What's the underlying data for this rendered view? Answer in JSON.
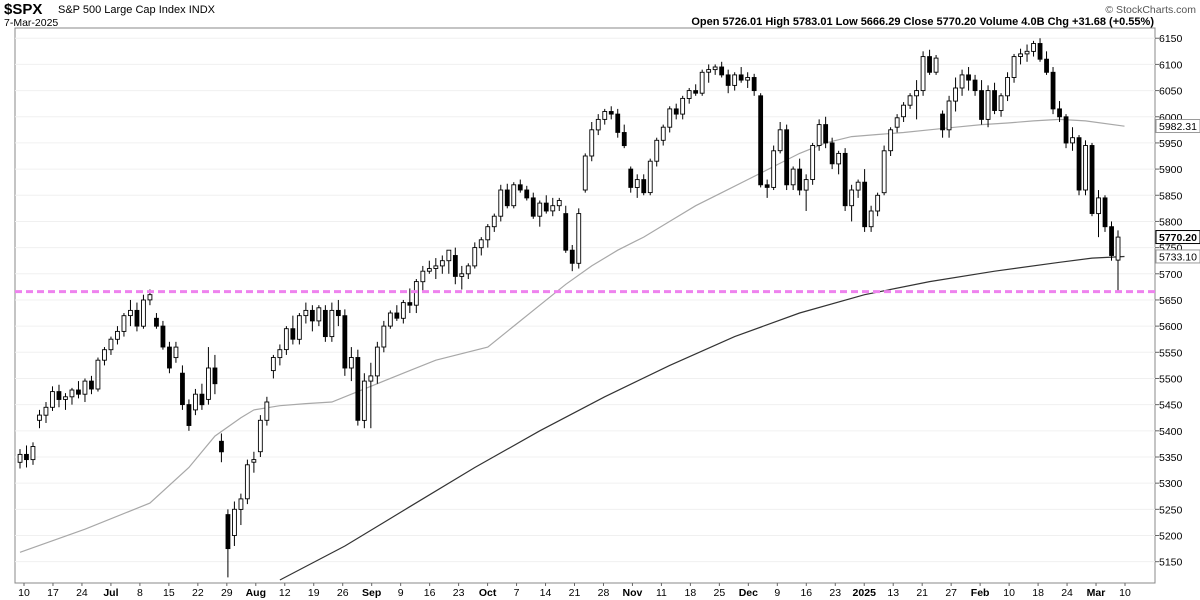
{
  "header": {
    "symbol": "$SPX",
    "name": "S&P 500 Large Cap Index",
    "exchange": "INDX",
    "date": "7-Mar-2025",
    "brand": "© StockCharts.com",
    "stats": "Open 5726.01  High 5783.01  Low 5666.29  Close 5770.20  Volume 4.0B  Chg +31.68 (+0.55%)"
  },
  "chart_data": {
    "type": "candlestick",
    "title": "$SPX S&P 500 Large Cap Index INDX",
    "ylim": [
      5115,
      6160
    ],
    "y_ticks": [
      5150,
      5200,
      5250,
      5300,
      5350,
      5400,
      5450,
      5500,
      5550,
      5600,
      5650,
      5700,
      5750,
      5800,
      5850,
      5900,
      5950,
      6000,
      6050,
      6100,
      6150
    ],
    "x_ticks": [
      {
        "label": "10",
        "bold": false
      },
      {
        "label": "17",
        "bold": false
      },
      {
        "label": "24",
        "bold": false
      },
      {
        "label": "Jul",
        "bold": true
      },
      {
        "label": "8",
        "bold": false
      },
      {
        "label": "15",
        "bold": false
      },
      {
        "label": "22",
        "bold": false
      },
      {
        "label": "29",
        "bold": false
      },
      {
        "label": "Aug",
        "bold": true
      },
      {
        "label": "12",
        "bold": false
      },
      {
        "label": "19",
        "bold": false
      },
      {
        "label": "26",
        "bold": false
      },
      {
        "label": "Sep",
        "bold": true
      },
      {
        "label": "9",
        "bold": false
      },
      {
        "label": "16",
        "bold": false
      },
      {
        "label": "23",
        "bold": false
      },
      {
        "label": "Oct",
        "bold": true
      },
      {
        "label": "7",
        "bold": false
      },
      {
        "label": "14",
        "bold": false
      },
      {
        "label": "21",
        "bold": false
      },
      {
        "label": "28",
        "bold": false
      },
      {
        "label": "Nov",
        "bold": true
      },
      {
        "label": "11",
        "bold": false
      },
      {
        "label": "18",
        "bold": false
      },
      {
        "label": "25",
        "bold": false
      },
      {
        "label": "Dec",
        "bold": true
      },
      {
        "label": "9",
        "bold": false
      },
      {
        "label": "16",
        "bold": false
      },
      {
        "label": "23",
        "bold": false
      },
      {
        "label": "2025",
        "bold": true
      },
      {
        "label": "13",
        "bold": false
      },
      {
        "label": "21",
        "bold": false
      },
      {
        "label": "27",
        "bold": false
      },
      {
        "label": "Feb",
        "bold": true
      },
      {
        "label": "10",
        "bold": false
      },
      {
        "label": "18",
        "bold": false
      },
      {
        "label": "24",
        "bold": false
      },
      {
        "label": "Mar",
        "bold": true
      },
      {
        "label": "10",
        "bold": false
      }
    ],
    "price_tags": [
      {
        "value": 5982.31,
        "label": "5982.31",
        "style": "ma"
      },
      {
        "value": 5770.2,
        "label": "5770.20",
        "style": "close"
      },
      {
        "value": 5733.1,
        "label": "5733.10",
        "style": "ma"
      }
    ],
    "support_line": {
      "value": 5666,
      "color": "#ee82ee",
      "dashed": true
    },
    "candles": [
      [
        5340,
        5365,
        5328,
        5355
      ],
      [
        5355,
        5372,
        5330,
        5345
      ],
      [
        5345,
        5378,
        5335,
        5370
      ],
      [
        5420,
        5440,
        5405,
        5430
      ],
      [
        5430,
        5455,
        5415,
        5445
      ],
      [
        5445,
        5485,
        5438,
        5475
      ],
      [
        5475,
        5488,
        5445,
        5460
      ],
      [
        5460,
        5472,
        5440,
        5465
      ],
      [
        5465,
        5482,
        5450,
        5478
      ],
      [
        5478,
        5495,
        5462,
        5470
      ],
      [
        5470,
        5500,
        5455,
        5495
      ],
      [
        5495,
        5505,
        5470,
        5480
      ],
      [
        5480,
        5540,
        5475,
        5535
      ],
      [
        5535,
        5560,
        5525,
        5555
      ],
      [
        5555,
        5580,
        5545,
        5575
      ],
      [
        5575,
        5600,
        5565,
        5590
      ],
      [
        5590,
        5625,
        5580,
        5620
      ],
      [
        5620,
        5650,
        5600,
        5630
      ],
      [
        5630,
        5645,
        5590,
        5600
      ],
      [
        5600,
        5660,
        5595,
        5650
      ],
      [
        5650,
        5670,
        5640,
        5660
      ],
      [
        5615,
        5625,
        5595,
        5600
      ],
      [
        5600,
        5610,
        5555,
        5560
      ],
      [
        5560,
        5570,
        5510,
        5520
      ],
      [
        5540,
        5570,
        5530,
        5560
      ],
      [
        5510,
        5525,
        5440,
        5450
      ],
      [
        5450,
        5460,
        5400,
        5410
      ],
      [
        5440,
        5480,
        5430,
        5470
      ],
      [
        5470,
        5490,
        5440,
        5450
      ],
      [
        5460,
        5560,
        5450,
        5520
      ],
      [
        5520,
        5545,
        5470,
        5490
      ],
      [
        5380,
        5395,
        5340,
        5360
      ],
      [
        5240,
        5250,
        5120,
        5175
      ],
      [
        5200,
        5265,
        5180,
        5250
      ],
      [
        5250,
        5280,
        5220,
        5270
      ],
      [
        5270,
        5345,
        5260,
        5335
      ],
      [
        5340,
        5360,
        5320,
        5345
      ],
      [
        5360,
        5430,
        5350,
        5420
      ],
      [
        5420,
        5465,
        5410,
        5455
      ],
      [
        5515,
        5545,
        5500,
        5540
      ],
      [
        5540,
        5565,
        5525,
        5555
      ],
      [
        5555,
        5600,
        5545,
        5595
      ],
      [
        5595,
        5620,
        5565,
        5575
      ],
      [
        5575,
        5625,
        5565,
        5620
      ],
      [
        5620,
        5645,
        5605,
        5630
      ],
      [
        5630,
        5640,
        5590,
        5610
      ],
      [
        5610,
        5640,
        5600,
        5635
      ],
      [
        5630,
        5640,
        5570,
        5580
      ],
      [
        5580,
        5645,
        5570,
        5630
      ],
      [
        5630,
        5650,
        5600,
        5620
      ],
      [
        5620,
        5632,
        5505,
        5520
      ],
      [
        5520,
        5560,
        5495,
        5540
      ],
      [
        5540,
        5555,
        5410,
        5420
      ],
      [
        5420,
        5510,
        5405,
        5495
      ],
      [
        5495,
        5530,
        5405,
        5505
      ],
      [
        5505,
        5570,
        5490,
        5560
      ],
      [
        5560,
        5610,
        5550,
        5600
      ],
      [
        5600,
        5630,
        5595,
        5625
      ],
      [
        5625,
        5640,
        5610,
        5615
      ],
      [
        5615,
        5650,
        5605,
        5645
      ],
      [
        5645,
        5672,
        5625,
        5640
      ],
      [
        5640,
        5690,
        5625,
        5685
      ],
      [
        5685,
        5715,
        5665,
        5705
      ],
      [
        5705,
        5725,
        5700,
        5710
      ],
      [
        5710,
        5730,
        5690,
        5715
      ],
      [
        5715,
        5735,
        5700,
        5725
      ],
      [
        5725,
        5745,
        5700,
        5745
      ],
      [
        5735,
        5750,
        5680,
        5695
      ],
      [
        5695,
        5715,
        5670,
        5700
      ],
      [
        5700,
        5720,
        5690,
        5715
      ],
      [
        5715,
        5760,
        5710,
        5750
      ],
      [
        5750,
        5770,
        5735,
        5765
      ],
      [
        5765,
        5795,
        5750,
        5790
      ],
      [
        5790,
        5815,
        5780,
        5810
      ],
      [
        5810,
        5870,
        5800,
        5860
      ],
      [
        5860,
        5872,
        5825,
        5830
      ],
      [
        5830,
        5875,
        5825,
        5870
      ],
      [
        5870,
        5880,
        5855,
        5860
      ],
      [
        5860,
        5868,
        5840,
        5845
      ],
      [
        5845,
        5855,
        5805,
        5810
      ],
      [
        5810,
        5840,
        5790,
        5835
      ],
      [
        5835,
        5850,
        5815,
        5820
      ],
      [
        5820,
        5845,
        5810,
        5830
      ],
      [
        5830,
        5845,
        5820,
        5840
      ],
      [
        5815,
        5830,
        5740,
        5745
      ],
      [
        5745,
        5755,
        5705,
        5720
      ],
      [
        5720,
        5825,
        5710,
        5815
      ],
      [
        5860,
        5930,
        5855,
        5925
      ],
      [
        5925,
        5990,
        5915,
        5975
      ],
      [
        5975,
        6005,
        5965,
        5995
      ],
      [
        5995,
        6015,
        5985,
        6010
      ],
      [
        6010,
        6020,
        5995,
        6005
      ],
      [
        6005,
        6015,
        5960,
        5970
      ],
      [
        5970,
        5985,
        5940,
        5945
      ],
      [
        5900,
        5905,
        5855,
        5865
      ],
      [
        5865,
        5890,
        5845,
        5880
      ],
      [
        5880,
        5890,
        5850,
        5855
      ],
      [
        5855,
        5920,
        5850,
        5915
      ],
      [
        5915,
        5960,
        5905,
        5955
      ],
      [
        5955,
        5985,
        5945,
        5980
      ],
      [
        5980,
        6020,
        5970,
        6015
      ],
      [
        6015,
        6025,
        5995,
        6005
      ],
      [
        6005,
        6040,
        5995,
        6035
      ],
      [
        6035,
        6055,
        6025,
        6050
      ],
      [
        6050,
        6062,
        6040,
        6045
      ],
      [
        6045,
        6090,
        6040,
        6085
      ],
      [
        6085,
        6100,
        6065,
        6090
      ],
      [
        6090,
        6100,
        6080,
        6095
      ],
      [
        6095,
        6105,
        6075,
        6080
      ],
      [
        6080,
        6090,
        6045,
        6060
      ],
      [
        6060,
        6085,
        6050,
        6080
      ],
      [
        6080,
        6095,
        6065,
        6070
      ],
      [
        6070,
        6085,
        6055,
        6075
      ],
      [
        6075,
        6082,
        6040,
        6050
      ],
      [
        6040,
        6045,
        5865,
        5870
      ],
      [
        5870,
        5880,
        5845,
        5865
      ],
      [
        5865,
        5945,
        5860,
        5935
      ],
      [
        5935,
        5990,
        5930,
        5975
      ],
      [
        5975,
        5985,
        5860,
        5870
      ],
      [
        5870,
        5905,
        5860,
        5900
      ],
      [
        5900,
        5920,
        5850,
        5860
      ],
      [
        5860,
        5890,
        5820,
        5880
      ],
      [
        5880,
        5950,
        5870,
        5945
      ],
      [
        5945,
        5995,
        5935,
        5985
      ],
      [
        5985,
        6000,
        5940,
        5950
      ],
      [
        5950,
        5960,
        5900,
        5910
      ],
      [
        5910,
        5935,
        5890,
        5930
      ],
      [
        5930,
        5940,
        5820,
        5830
      ],
      [
        5830,
        5870,
        5800,
        5860
      ],
      [
        5860,
        5880,
        5845,
        5875
      ],
      [
        5875,
        5900,
        5780,
        5790
      ],
      [
        5790,
        5830,
        5780,
        5820
      ],
      [
        5820,
        5855,
        5810,
        5850
      ],
      [
        5855,
        5945,
        5850,
        5935
      ],
      [
        5935,
        5980,
        5925,
        5975
      ],
      [
        5980,
        6005,
        5970,
        5998
      ],
      [
        6000,
        6028,
        5990,
        6022
      ],
      [
        6022,
        6045,
        6015,
        6040
      ],
      [
        6040,
        6070,
        5995,
        6050
      ],
      [
        6050,
        6125,
        6040,
        6115
      ],
      [
        6115,
        6128,
        6080,
        6085
      ],
      [
        6085,
        6118,
        6080,
        6112
      ],
      [
        6005,
        6012,
        5960,
        5975
      ],
      [
        5975,
        6040,
        5960,
        6030
      ],
      [
        6030,
        6075,
        6010,
        6055
      ],
      [
        6055,
        6090,
        6040,
        6080
      ],
      [
        6080,
        6095,
        6050,
        6070
      ],
      [
        6070,
        6080,
        6040,
        6050
      ],
      [
        6050,
        6070,
        5985,
        5995
      ],
      [
        5995,
        6060,
        5980,
        6050
      ],
      [
        6050,
        6065,
        6005,
        6012
      ],
      [
        6012,
        6045,
        6000,
        6040
      ],
      [
        6040,
        6085,
        6030,
        6075
      ],
      [
        6075,
        6120,
        6065,
        6115
      ],
      [
        6115,
        6130,
        6100,
        6120
      ],
      [
        6120,
        6138,
        6105,
        6125
      ],
      [
        6125,
        6145,
        6115,
        6140
      ],
      [
        6140,
        6150,
        6105,
        6110
      ],
      [
        6110,
        6125,
        6080,
        6085
      ],
      [
        6085,
        6095,
        6005,
        6015
      ],
      [
        6015,
        6030,
        5990,
        6000
      ],
      [
        6000,
        6005,
        5940,
        5950
      ],
      [
        5950,
        5980,
        5935,
        5960
      ],
      [
        5960,
        5965,
        5850,
        5860
      ],
      [
        5860,
        5955,
        5850,
        5945
      ],
      [
        5945,
        5950,
        5810,
        5815
      ],
      [
        5815,
        5860,
        5770,
        5845
      ],
      [
        5845,
        5850,
        5780,
        5790
      ],
      [
        5790,
        5800,
        5725,
        5735
      ],
      [
        5726,
        5783,
        5666,
        5770
      ]
    ],
    "ma50": [
      [
        0,
        5168
      ],
      [
        10,
        5212
      ],
      [
        20,
        5262
      ],
      [
        26,
        5330
      ],
      [
        30,
        5390
      ],
      [
        34,
        5425
      ],
      [
        36,
        5440
      ],
      [
        40,
        5448
      ],
      [
        44,
        5452
      ],
      [
        48,
        5455
      ],
      [
        54,
        5485
      ],
      [
        60,
        5515
      ],
      [
        64,
        5535
      ],
      [
        72,
        5560
      ],
      [
        76,
        5600
      ],
      [
        80,
        5640
      ],
      [
        84,
        5680
      ],
      [
        88,
        5715
      ],
      [
        92,
        5745
      ],
      [
        96,
        5770
      ],
      [
        100,
        5800
      ],
      [
        104,
        5830
      ],
      [
        108,
        5855
      ],
      [
        112,
        5880
      ],
      [
        116,
        5905
      ],
      [
        120,
        5930
      ],
      [
        124,
        5950
      ],
      [
        128,
        5962
      ],
      [
        132,
        5966
      ],
      [
        136,
        5970
      ],
      [
        140,
        5975
      ],
      [
        144,
        5980
      ],
      [
        148,
        5985
      ],
      [
        152,
        5988
      ],
      [
        156,
        5992
      ],
      [
        160,
        5995
      ],
      [
        164,
        5992
      ],
      [
        170,
        5982
      ]
    ],
    "ma200": [
      [
        40,
        5115
      ],
      [
        50,
        5180
      ],
      [
        60,
        5255
      ],
      [
        70,
        5330
      ],
      [
        80,
        5400
      ],
      [
        90,
        5465
      ],
      [
        100,
        5525
      ],
      [
        110,
        5580
      ],
      [
        120,
        5625
      ],
      [
        130,
        5660
      ],
      [
        140,
        5685
      ],
      [
        150,
        5705
      ],
      [
        160,
        5722
      ],
      [
        165,
        5730
      ],
      [
        170,
        5733
      ]
    ]
  }
}
